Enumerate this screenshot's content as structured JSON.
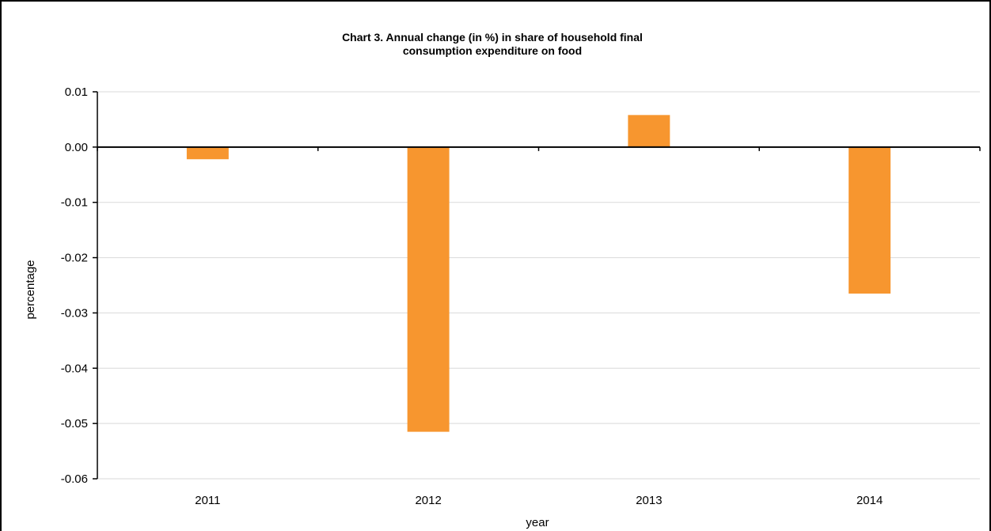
{
  "chart_data": {
    "type": "bar",
    "title_lines": [
      "Chart 3.  Annual change (in %) in share of household final",
      "consumption expenditure on food"
    ],
    "xlabel": "year",
    "ylabel": "percentage",
    "categories": [
      "2011",
      "2012",
      "2013",
      "2014"
    ],
    "values": [
      -0.0022,
      -0.0515,
      0.0058,
      -0.0265
    ],
    "ylim": [
      -0.06,
      0.01
    ],
    "yticks": [
      "0.01",
      "0.00",
      "-0.01",
      "-0.02",
      "-0.03",
      "-0.04",
      "-0.05",
      "-0.06"
    ],
    "grid": true,
    "legend": "none",
    "bar_color": "#F7962F"
  }
}
